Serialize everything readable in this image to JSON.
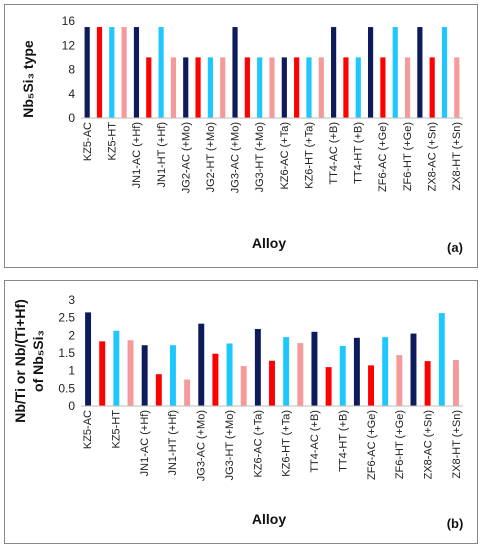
{
  "colors": {
    "AC_primary": "#0d1a5c",
    "AC_secondary": "#ff0000",
    "HT_primary": "#1ec8ff",
    "HT_secondary": "#f59a9a"
  },
  "chart_data": [
    {
      "panel_label": "(a)",
      "type": "bar",
      "xlabel": "Alloy",
      "ylabel": "Nb₅Si₃ type",
      "ylim": [
        0,
        16
      ],
      "yticks": [
        0,
        4,
        8,
        12,
        16
      ],
      "grid": false,
      "categories": [
        "KZ5-AC",
        "KZ5-HT",
        "JN1-AC (+Hf)",
        "JN1-HT (+Hf)",
        "JG2-AC (+Mo)",
        "JG2-HT (+Mo)",
        "JG3-AC (+Mo)",
        "JG3-HT (+Mo)",
        "KZ6-AC (+Ta)",
        "KZ6-HT (+Ta)",
        "TT4-AC (+B)",
        "TT4-HT (+B)",
        "ZF6-AC (+Ge)",
        "ZF6-HT (+Ge)",
        "ZX8-AC (+Sn)",
        "ZX8-HT (+Sn)"
      ],
      "bars": [
        {
          "slot": 0,
          "value": 15,
          "color": "#0d1a5c"
        },
        {
          "slot": 1,
          "value": 15,
          "color": "#ff0000"
        },
        {
          "slot": 2,
          "value": 15,
          "color": "#1ec8ff"
        },
        {
          "slot": 3,
          "value": 15,
          "color": "#f59a9a"
        },
        {
          "slot": 4,
          "value": 15,
          "color": "#0d1a5c"
        },
        {
          "slot": 5,
          "value": 10,
          "color": "#ff0000"
        },
        {
          "slot": 6,
          "value": 15,
          "color": "#1ec8ff"
        },
        {
          "slot": 7,
          "value": 10,
          "color": "#f59a9a"
        },
        {
          "slot": 8,
          "value": 10,
          "color": "#0d1a5c"
        },
        {
          "slot": 9,
          "value": 10,
          "color": "#ff0000"
        },
        {
          "slot": 10,
          "value": 10,
          "color": "#1ec8ff"
        },
        {
          "slot": 11,
          "value": 10,
          "color": "#f59a9a"
        },
        {
          "slot": 12,
          "value": 15,
          "color": "#0d1a5c"
        },
        {
          "slot": 13,
          "value": 10,
          "color": "#ff0000"
        },
        {
          "slot": 14,
          "value": 10,
          "color": "#1ec8ff"
        },
        {
          "slot": 15,
          "value": 10,
          "color": "#f59a9a"
        },
        {
          "slot": 16,
          "value": 10,
          "color": "#0d1a5c"
        },
        {
          "slot": 17,
          "value": 10,
          "color": "#ff0000"
        },
        {
          "slot": 18,
          "value": 10,
          "color": "#1ec8ff"
        },
        {
          "slot": 19,
          "value": 10,
          "color": "#f59a9a"
        },
        {
          "slot": 20,
          "value": 15,
          "color": "#0d1a5c"
        },
        {
          "slot": 21,
          "value": 10,
          "color": "#ff0000"
        },
        {
          "slot": 22,
          "value": 10,
          "color": "#1ec8ff"
        },
        {
          "slot": 23,
          "value": 15,
          "color": "#0d1a5c"
        },
        {
          "slot": 24,
          "value": 10,
          "color": "#ff0000"
        },
        {
          "slot": 25,
          "value": 15,
          "color": "#1ec8ff"
        },
        {
          "slot": 26,
          "value": 10,
          "color": "#f59a9a"
        },
        {
          "slot": 27,
          "value": 15,
          "color": "#0d1a5c"
        },
        {
          "slot": 28,
          "value": 10,
          "color": "#ff0000"
        },
        {
          "slot": 29,
          "value": 15,
          "color": "#1ec8ff"
        },
        {
          "slot": 30,
          "value": 10,
          "color": "#f59a9a"
        }
      ]
    },
    {
      "panel_label": "(b)",
      "type": "bar",
      "xlabel": "Alloy",
      "ylabel_line1": "Nb/Ti or Nb/(Ti+Hf)",
      "ylabel_line2": "of Nb₅Si₃",
      "ylim": [
        0,
        3
      ],
      "yticks": [
        "0",
        "0.5",
        "1",
        "1.5",
        "2",
        "2.5",
        "3"
      ],
      "grid": false,
      "categories": [
        "KZ5-AC",
        "KZ5-HT",
        "JN1-AC (+Hf)",
        "JN1-HT (+Hf)",
        "JG3-AC (+Mo)",
        "JG3-HT (+Mo)",
        "KZ6-AC (+Ta)",
        "KZ6-HT (+Ta)",
        "TT4-AC (+B)",
        "TT4-HT (+B)",
        "ZF6-AC (+Ge)",
        "ZF6-HT (+Ge)",
        "ZX8-AC (+Sn)",
        "ZX8-HT (+Sn)"
      ],
      "bars": [
        {
          "slot": 0,
          "value": 2.65,
          "color": "#0d1a5c"
        },
        {
          "slot": 1,
          "value": 1.83,
          "color": "#ff0000"
        },
        {
          "slot": 2,
          "value": 2.13,
          "color": "#1ec8ff"
        },
        {
          "slot": 3,
          "value": 1.86,
          "color": "#f59a9a"
        },
        {
          "slot": 4,
          "value": 1.72,
          "color": "#0d1a5c"
        },
        {
          "slot": 5,
          "value": 0.9,
          "color": "#ff0000"
        },
        {
          "slot": 6,
          "value": 1.72,
          "color": "#1ec8ff"
        },
        {
          "slot": 7,
          "value": 0.75,
          "color": "#f59a9a"
        },
        {
          "slot": 8,
          "value": 2.33,
          "color": "#0d1a5c"
        },
        {
          "slot": 9,
          "value": 1.48,
          "color": "#ff0000"
        },
        {
          "slot": 10,
          "value": 1.77,
          "color": "#1ec8ff"
        },
        {
          "slot": 11,
          "value": 1.13,
          "color": "#f59a9a"
        },
        {
          "slot": 12,
          "value": 2.18,
          "color": "#0d1a5c"
        },
        {
          "slot": 13,
          "value": 1.28,
          "color": "#ff0000"
        },
        {
          "slot": 14,
          "value": 1.95,
          "color": "#1ec8ff"
        },
        {
          "slot": 15,
          "value": 1.78,
          "color": "#f59a9a"
        },
        {
          "slot": 16,
          "value": 2.1,
          "color": "#0d1a5c"
        },
        {
          "slot": 17,
          "value": 1.1,
          "color": "#ff0000"
        },
        {
          "slot": 18,
          "value": 1.7,
          "color": "#1ec8ff"
        },
        {
          "slot": 19,
          "value": 1.93,
          "color": "#0d1a5c"
        },
        {
          "slot": 20,
          "value": 1.15,
          "color": "#ff0000"
        },
        {
          "slot": 21,
          "value": 1.95,
          "color": "#1ec8ff"
        },
        {
          "slot": 22,
          "value": 1.44,
          "color": "#f59a9a"
        },
        {
          "slot": 23,
          "value": 2.05,
          "color": "#0d1a5c"
        },
        {
          "slot": 24,
          "value": 1.27,
          "color": "#ff0000"
        },
        {
          "slot": 25,
          "value": 2.63,
          "color": "#1ec8ff"
        },
        {
          "slot": 26,
          "value": 1.3,
          "color": "#f59a9a"
        }
      ]
    }
  ]
}
